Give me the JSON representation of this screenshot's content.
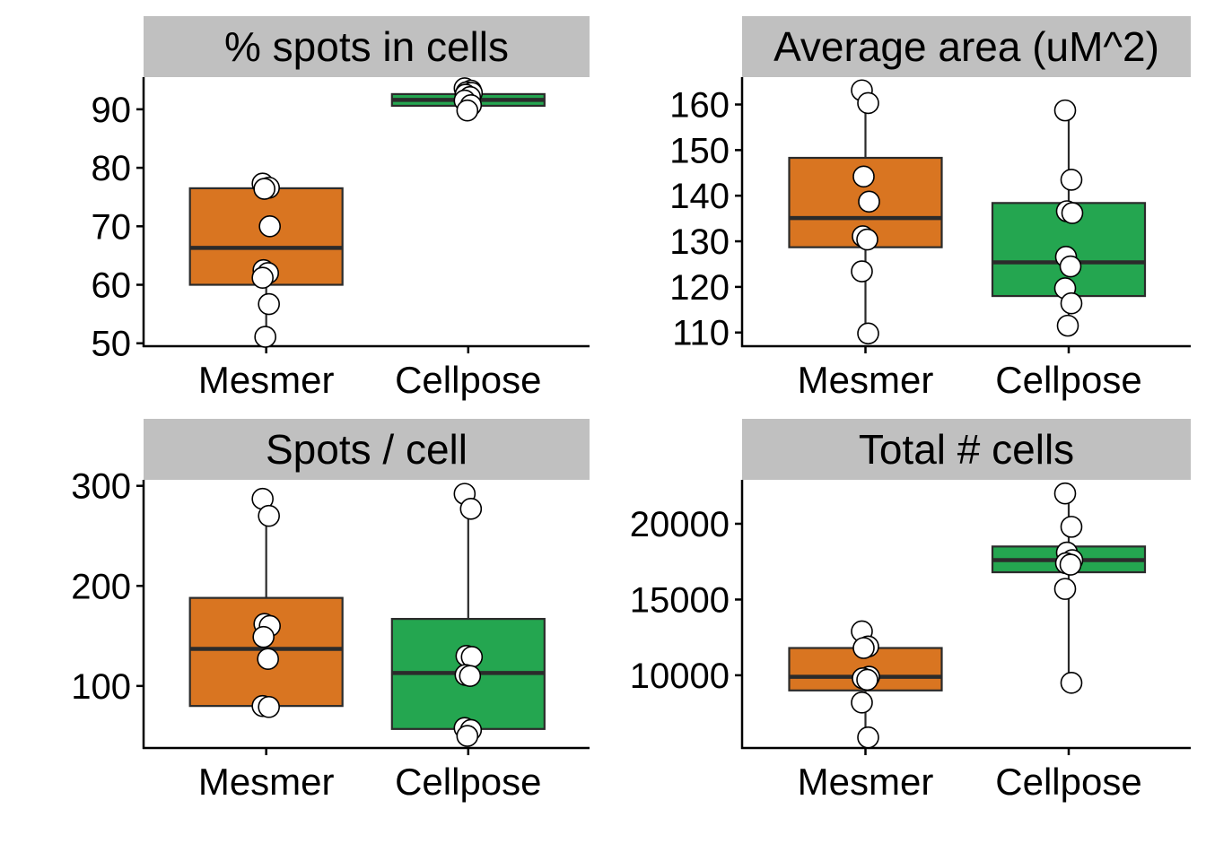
{
  "colors": {
    "mesmer_fill": "#D97521",
    "cellpose_fill": "#24A650",
    "strip_background": "#C0C0C0",
    "box_line": "#2B2B2B",
    "point_fill": "#FFFFFF",
    "point_stroke": "#000000"
  },
  "chart_data": [
    {
      "type": "boxplot",
      "title": "% spots in cells",
      "categories": [
        "Mesmer",
        "Cellpose"
      ],
      "y_ticks": [
        50,
        60,
        70,
        80,
        90
      ],
      "ylim": [
        49.5,
        95.5
      ],
      "boxes": [
        {
          "category": "Mesmer",
          "q1": 60,
          "median": 66.3,
          "q3": 76.5,
          "whisker_low": 51,
          "whisker_high": 77.5
        },
        {
          "category": "Cellpose",
          "q1": 90.6,
          "median": 91.6,
          "q3": 92.6,
          "whisker_low": 89.5,
          "whisker_high": 93.7
        }
      ],
      "points": [
        {
          "category": "Mesmer",
          "values": [
            77.3,
            76.6,
            76.4,
            70,
            62.5,
            62,
            61.2,
            56.7,
            51.1
          ]
        },
        {
          "category": "Cellpose",
          "values": [
            93.6,
            93.2,
            92.9,
            92.8,
            92.5,
            92.1,
            91.5,
            90.7,
            89.8
          ]
        }
      ]
    },
    {
      "type": "boxplot",
      "title": "Average area (uM^2)",
      "categories": [
        "Mesmer",
        "Cellpose"
      ],
      "y_ticks": [
        110,
        120,
        130,
        140,
        150,
        160
      ],
      "ylim": [
        107,
        166
      ],
      "boxes": [
        {
          "category": "Mesmer",
          "q1": 128.7,
          "median": 135.1,
          "q3": 148.3,
          "whisker_low": 109.8,
          "whisker_high": 163.1
        },
        {
          "category": "Cellpose",
          "q1": 118,
          "median": 125.4,
          "q3": 138.4,
          "whisker_low": 111.5,
          "whisker_high": 158.7
        }
      ],
      "points": [
        {
          "category": "Mesmer",
          "values": [
            163.1,
            160.3,
            144.2,
            138.7,
            131.1,
            130.4,
            123.4,
            109.8
          ]
        },
        {
          "category": "Cellpose",
          "values": [
            158.7,
            143.5,
            136.6,
            136.2,
            126.6,
            124.5,
            119.7,
            116.4,
            111.5
          ]
        }
      ]
    },
    {
      "type": "boxplot",
      "title": "Spots / cell",
      "categories": [
        "Mesmer",
        "Cellpose"
      ],
      "y_ticks": [
        100,
        200,
        300
      ],
      "ylim": [
        38,
        306
      ],
      "boxes": [
        {
          "category": "Mesmer",
          "q1": 80,
          "median": 137,
          "q3": 188,
          "whisker_low": 78,
          "whisker_high": 287
        },
        {
          "category": "Cellpose",
          "q1": 57,
          "median": 113,
          "q3": 167,
          "whisker_low": 50,
          "whisker_high": 292
        }
      ],
      "points": [
        {
          "category": "Mesmer",
          "values": [
            287,
            270,
            162,
            160,
            149,
            127,
            80,
            79
          ]
        },
        {
          "category": "Cellpose",
          "values": [
            292,
            277,
            130,
            129,
            111,
            110,
            58,
            56,
            50
          ]
        }
      ]
    },
    {
      "type": "boxplot",
      "title": "Total # cells",
      "categories": [
        "Mesmer",
        "Cellpose"
      ],
      "y_ticks": [
        10000,
        15000,
        20000
      ],
      "ylim": [
        5200,
        22900
      ],
      "boxes": [
        {
          "category": "Mesmer",
          "q1": 9000,
          "median": 9900,
          "q3": 11800,
          "whisker_low": 5900,
          "whisker_high": 12900
        },
        {
          "category": "Cellpose",
          "q1": 16800,
          "median": 17600,
          "q3": 18500,
          "whisker_low": 9500,
          "whisker_high": 22000
        }
      ],
      "points": [
        {
          "category": "Mesmer",
          "values": [
            12900,
            11900,
            11800,
            9900,
            9800,
            9700,
            8200,
            5900
          ]
        },
        {
          "category": "Cellpose",
          "values": [
            22000,
            19800,
            18100,
            17600,
            17400,
            17300,
            15700,
            9500
          ]
        }
      ]
    }
  ]
}
